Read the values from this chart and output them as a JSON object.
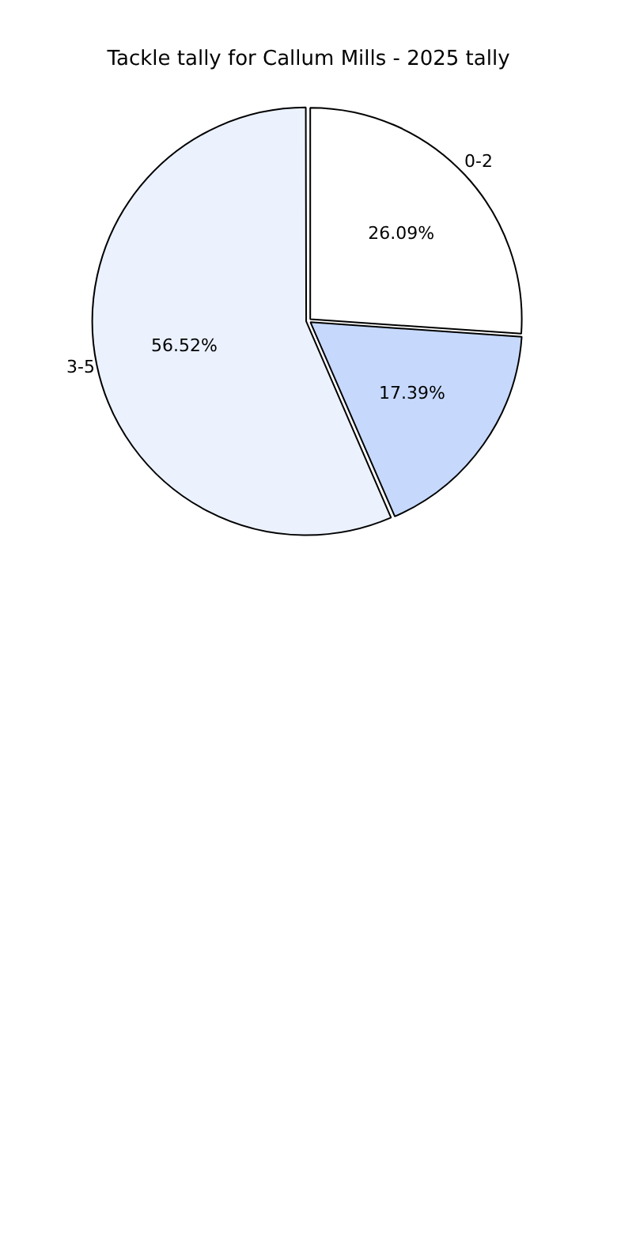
{
  "chart_data": {
    "type": "pie",
    "title": "Tackle tally for Callum Mills - 2025 tally",
    "categories": [
      "0-2",
      null,
      "3-5"
    ],
    "values": [
      26.09,
      17.39,
      56.52
    ],
    "value_labels": [
      "26.09%",
      "17.39%",
      "56.52%"
    ],
    "colors": [
      "#ffffff",
      "#c6d9fd",
      "#ebf2fe"
    ],
    "legend": false
  }
}
